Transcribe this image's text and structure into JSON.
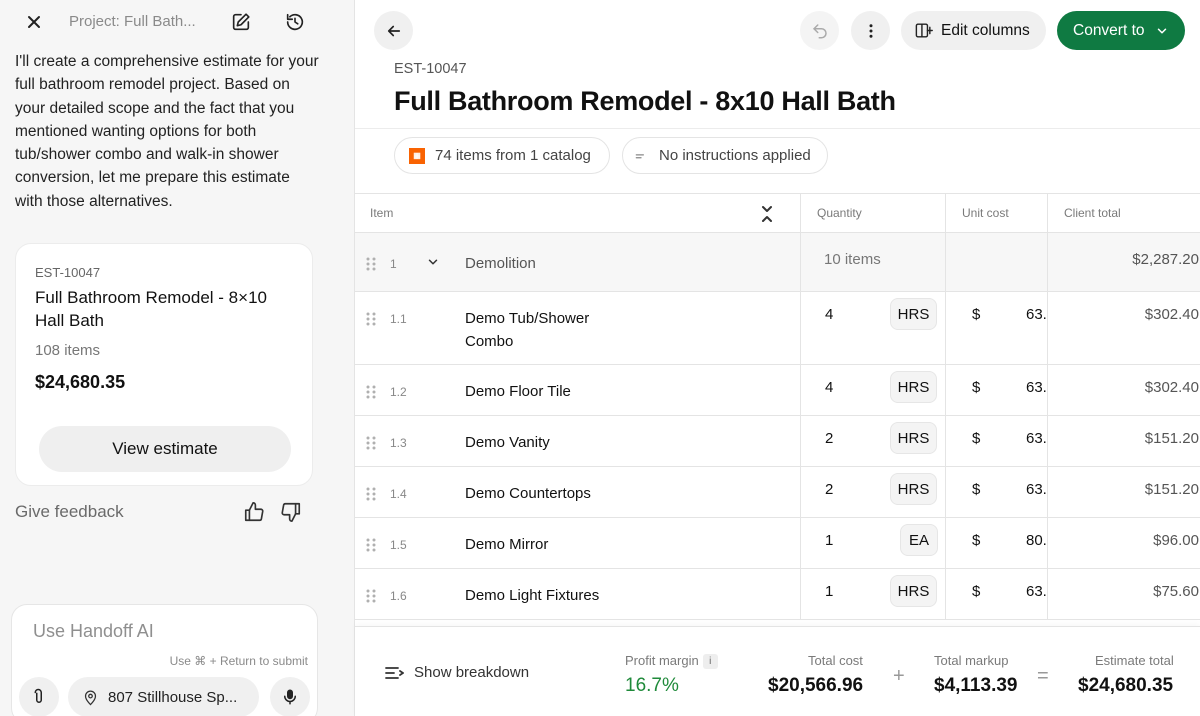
{
  "sidebar": {
    "header_title": "Project: Full Bath...",
    "message": "I'll create a comprehensive estimate for your full bathroom remodel project. Based on your detailed scope and the fact that you mentioned wanting options for both tub/shower combo and walk-in shower conversion, let me prepare this estimate with those alternatives.",
    "card": {
      "number": "EST-10047",
      "title": "Full Bathroom Remodel - 8×10 Hall Bath",
      "item_count": "108 items",
      "total": "$24,680.35",
      "view_label": "View estimate"
    },
    "feedback_label": "Give feedback",
    "composer": {
      "placeholder": "Use Handoff AI",
      "hint": "Use ⌘ + Return to submit",
      "location": "807 Stillhouse Sp..."
    }
  },
  "toolbar": {
    "edit_columns_label": "Edit columns",
    "convert_label": "Convert to"
  },
  "estimate": {
    "code": "EST-10047",
    "title": "Full Bathroom Remodel - 8x10 Hall Bath",
    "catalog_chip": "74 items from 1 catalog",
    "instructions_chip": "No instructions applied"
  },
  "table": {
    "columns": {
      "item": "Item",
      "quantity": "Quantity",
      "unit_cost": "Unit cost",
      "client_total": "Client total"
    },
    "group": {
      "num": "1",
      "name": "Demolition",
      "count": "10 items",
      "total": "$2,287.20"
    },
    "rows": [
      {
        "num": "1.1",
        "name": "Demo Tub/Shower Combo",
        "qty": "4",
        "unit": "HRS",
        "currency": "$",
        "cost": "63.",
        "total": "$302.40"
      },
      {
        "num": "1.2",
        "name": "Demo Floor Tile",
        "qty": "4",
        "unit": "HRS",
        "currency": "$",
        "cost": "63.",
        "total": "$302.40"
      },
      {
        "num": "1.3",
        "name": "Demo Vanity",
        "qty": "2",
        "unit": "HRS",
        "currency": "$",
        "cost": "63.",
        "total": "$151.20"
      },
      {
        "num": "1.4",
        "name": "Demo Countertops",
        "qty": "2",
        "unit": "HRS",
        "currency": "$",
        "cost": "63.",
        "total": "$151.20"
      },
      {
        "num": "1.5",
        "name": "Demo Mirror",
        "qty": "1",
        "unit": "EA",
        "currency": "$",
        "cost": "80.",
        "total": "$96.00"
      },
      {
        "num": "1.6",
        "name": "Demo Light Fixtures",
        "qty": "1",
        "unit": "HRS",
        "currency": "$",
        "cost": "63.",
        "total": "$75.60"
      }
    ]
  },
  "footer": {
    "breakdown_label": "Show breakdown",
    "profit_margin_label": "Profit margin",
    "profit_margin_info": "i",
    "profit_margin_value": "16.7%",
    "total_cost_label": "Total cost",
    "total_cost_value": "$20,566.96",
    "plus": "+",
    "total_markup_label": "Total markup",
    "total_markup_value": "$4,113.39",
    "equals": "=",
    "estimate_total_label": "Estimate total",
    "estimate_total_value": "$24,680.35"
  },
  "colors": {
    "brand_green": "#0f7a42",
    "margin_green": "#1f8a3a",
    "catalog_orange": "#f96302"
  },
  "icons": {
    "close": "close-icon",
    "edit": "edit-icon",
    "history": "history-icon",
    "back": "arrow-left-icon",
    "undo": "undo-icon",
    "more": "more-vertical-icon",
    "columns": "columns-icon",
    "chevron": "chevron-down-icon",
    "thumbs_up": "thumbs-up-icon",
    "thumbs_down": "thumbs-down-icon",
    "attach": "paperclip-icon",
    "location": "map-pin-icon",
    "mic": "microphone-icon"
  }
}
